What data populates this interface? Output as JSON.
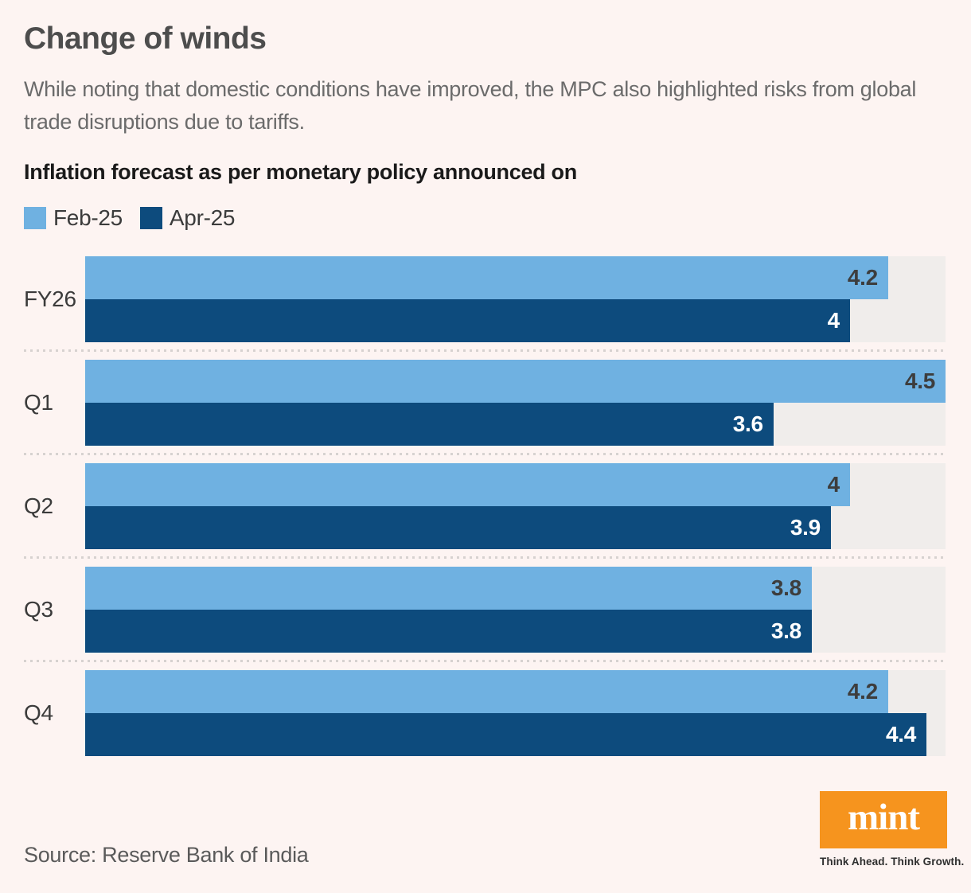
{
  "title": "Change of winds",
  "subtitle": "While noting that domestic conditions have improved, the MPC also highlighted risks from global trade disruptions due to tariffs.",
  "chart_heading": "Inflation forecast as per monetary policy announced on",
  "legend": [
    {
      "label": "Feb-25",
      "color": "#6fb1e1"
    },
    {
      "label": "Apr-25",
      "color": "#0d4b7d"
    }
  ],
  "chart_data": {
    "type": "bar",
    "orientation": "horizontal",
    "title": "Inflation forecast as per monetary policy announced on",
    "categories": [
      "FY26",
      "Q1",
      "Q2",
      "Q3",
      "Q4"
    ],
    "series": [
      {
        "name": "Feb-25",
        "color": "#6fb1e1",
        "values": [
          4.2,
          4.5,
          4,
          3.8,
          4.2
        ]
      },
      {
        "name": "Apr-25",
        "color": "#0d4b7d",
        "values": [
          4,
          3.6,
          3.9,
          3.8,
          4.4
        ]
      }
    ],
    "xlim": [
      0,
      4.5
    ],
    "value_labels": "inside-end",
    "grid": false,
    "legend_position": "top-left",
    "track_color": "#f0edeb",
    "separator_style": "dotted"
  },
  "source": "Source: Reserve Bank of India",
  "branding": {
    "logo_text": "mint",
    "logo_color": "#f6941e",
    "tagline": "Think Ahead. Think Growth."
  },
  "colors": {
    "background": "#fdf4f2",
    "title": "#4d4d4d",
    "subtitle": "#6b6b6b",
    "heading": "#1a1a1a",
    "value_on_light": "#3d3d3d",
    "value_on_dark": "#ffffff"
  }
}
